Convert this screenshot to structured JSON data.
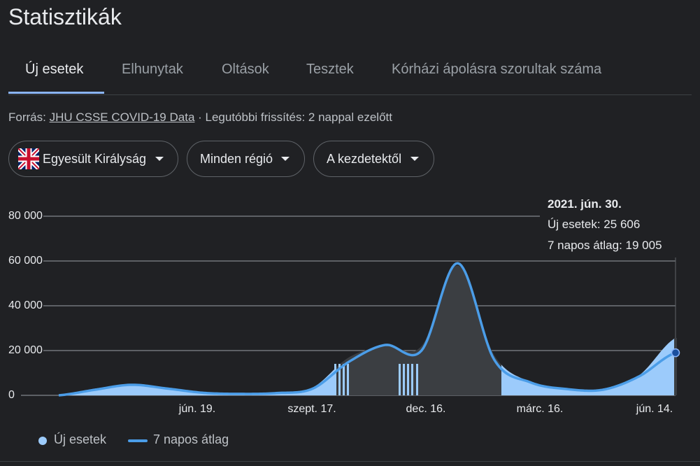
{
  "page": {
    "title": "Statisztikák"
  },
  "tabs": [
    {
      "label": "Új esetek"
    },
    {
      "label": "Elhunytak"
    },
    {
      "label": "Oltások"
    },
    {
      "label": "Tesztek"
    },
    {
      "label": "Kórházi ápolásra szorultak száma"
    }
  ],
  "source": {
    "prefix": "Forrás: ",
    "link": "JHU CSSE COVID-19 Data",
    "suffix": " · Legutóbbi frissítés: 2 nappal ezelőtt"
  },
  "filters": {
    "country": "Egyesült Királyság",
    "region": "Minden régió",
    "period": "A kezdetektől"
  },
  "tooltip": {
    "date": "2021. jún. 30.",
    "cases": "Új esetek: 25 606",
    "avg": "7 napos átlag: 19 005"
  },
  "chart_data": {
    "type": "bar",
    "y_ticks": [
      "80 000",
      "60 000",
      "40 000",
      "20 000",
      "0"
    ],
    "x_ticks": [
      "jún. 19.",
      "szept. 17.",
      "dec. 16.",
      "márc. 16.",
      "jún. 14."
    ],
    "ylim": [
      0,
      80000
    ],
    "grid": true,
    "legend_position": "bottom",
    "series": [
      {
        "name": "Új esetek",
        "kind": "bars",
        "color": "#9ccbfb"
      },
      {
        "name": "7 napos átlag",
        "kind": "line",
        "color": "#4b9de8"
      }
    ],
    "x": [
      "2020-02",
      "2020-03",
      "2020-04",
      "2020-05",
      "2020-06",
      "2020-07",
      "2020-08",
      "2020-09",
      "2020-10",
      "2020-11",
      "2020-12",
      "2021-01",
      "2021-02",
      "2021-03",
      "2021-04",
      "2021-05",
      "2021-06",
      "2021-06-30"
    ],
    "values": [
      0,
      3000,
      4800,
      3200,
      1200,
      700,
      1000,
      3500,
      17000,
      22000,
      22000,
      58000,
      18000,
      6000,
      3000,
      2500,
      9000,
      25606
    ],
    "seven_day_average": [
      0,
      2500,
      4700,
      3000,
      1100,
      650,
      1000,
      3000,
      15000,
      22500,
      20000,
      59000,
      16000,
      5800,
      2800,
      2500,
      8500,
      19005
    ]
  },
  "colors": {
    "background": "#202124",
    "bars": "#9ccbfb",
    "bars_shaded": "#3b3e42",
    "line": "#4b9de8",
    "tab_active": "#8ab4f8",
    "marker": "#1a4f9e"
  },
  "legend": {
    "cases": "Új esetek",
    "avg": "7 napos átlag"
  }
}
